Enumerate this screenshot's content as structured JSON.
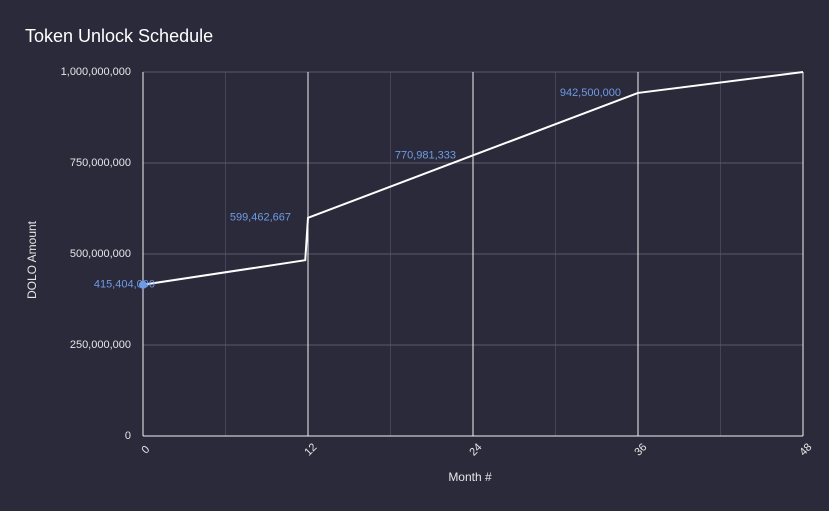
{
  "chart_data": {
    "type": "line",
    "title": "Token Unlock Schedule",
    "x_label": "Month #",
    "y_label": "DOLO Amount",
    "x": [
      0,
      11.8,
      12,
      24,
      36,
      48
    ],
    "values": [
      415404000,
      483000000,
      599462667,
      770981333,
      942500000,
      1000000000
    ],
    "value_labels": [
      "415,404,000",
      null,
      "599,462,667",
      "770,981,333",
      "942,500,000",
      null
    ],
    "color": "#ffffff",
    "label_color": "#6f9be4",
    "xlim": [
      0,
      48
    ],
    "xticks": [
      0,
      12,
      24,
      36,
      48
    ],
    "xminorticks": [
      6,
      18,
      30,
      42
    ],
    "ylim": [
      0,
      1000000000
    ],
    "yticks": [
      0,
      {
        "value": 250000000,
        "label": "250,000,000"
      },
      {
        "value": 500000000,
        "label": "500,000,000"
      },
      {
        "value": 750000000,
        "label": "750,000,000"
      },
      {
        "value": 1000000000,
        "label": "1,000,000,000"
      }
    ],
    "grid": true
  }
}
